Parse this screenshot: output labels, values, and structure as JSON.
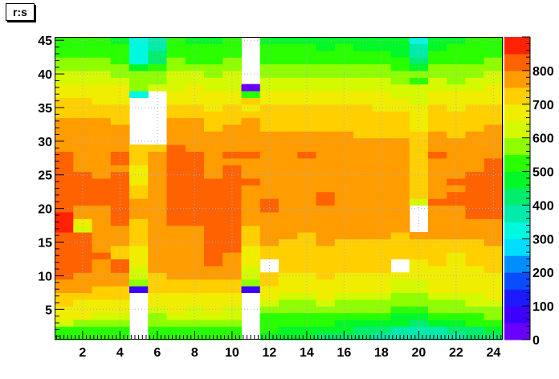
{
  "title": "r:s",
  "chart_data": {
    "type": "heatmap",
    "title": "r:s",
    "x_range": [
      0.5,
      24.5
    ],
    "y_range": [
      0.5,
      45.5
    ],
    "x_ticks": [
      2,
      4,
      6,
      8,
      10,
      12,
      14,
      16,
      18,
      20,
      22,
      24
    ],
    "y_ticks": [
      5,
      10,
      15,
      20,
      25,
      30,
      35,
      40,
      45
    ],
    "z_range": [
      0,
      900
    ],
    "colorbar_ticks": [
      0,
      100,
      200,
      300,
      400,
      500,
      600,
      700,
      800
    ],
    "grid": true,
    "empty_cells_note": "Cells with value null are not drawn (white).",
    "rows_y1_to_y45": [
      [
        510,
        510,
        510,
        520,
        null,
        520,
        510,
        510,
        510,
        520,
        null,
        480,
        470,
        460,
        440,
        420,
        410,
        390,
        360,
        350,
        360,
        380,
        400,
        420
      ],
      [
        540,
        530,
        520,
        520,
        null,
        540,
        530,
        530,
        520,
        540,
        null,
        500,
        490,
        480,
        470,
        450,
        440,
        410,
        370,
        350,
        380,
        400,
        430,
        450
      ],
      [
        600,
        590,
        590,
        580,
        null,
        570,
        590,
        580,
        570,
        590,
        null,
        520,
        510,
        500,
        500,
        490,
        480,
        470,
        450,
        440,
        470,
        480,
        510,
        520
      ],
      [
        660,
        650,
        640,
        630,
        null,
        590,
        640,
        600,
        620,
        630,
        null,
        540,
        530,
        520,
        540,
        520,
        520,
        510,
        490,
        490,
        520,
        510,
        540,
        550
      ],
      [
        680,
        680,
        670,
        660,
        null,
        620,
        650,
        640,
        650,
        640,
        null,
        570,
        560,
        560,
        580,
        560,
        560,
        550,
        530,
        530,
        560,
        550,
        580,
        590
      ],
      [
        700,
        690,
        690,
        690,
        null,
        650,
        660,
        660,
        650,
        660,
        null,
        610,
        590,
        590,
        620,
        590,
        590,
        590,
        560,
        560,
        590,
        590,
        610,
        620
      ],
      [
        730,
        720,
        710,
        720,
        null,
        680,
        680,
        690,
        680,
        690,
        null,
        650,
        620,
        620,
        650,
        620,
        630,
        620,
        590,
        590,
        620,
        620,
        640,
        650
      ],
      [
        760,
        750,
        730,
        740,
        80,
        700,
        710,
        720,
        710,
        720,
        80,
        680,
        650,
        650,
        670,
        650,
        650,
        650,
        620,
        620,
        650,
        650,
        660,
        670
      ],
      [
        790,
        770,
        750,
        760,
        560,
        720,
        730,
        740,
        740,
        740,
        560,
        700,
        670,
        670,
        690,
        670,
        670,
        670,
        640,
        640,
        670,
        660,
        670,
        680
      ],
      [
        810,
        790,
        770,
        790,
        620,
        740,
        760,
        760,
        780,
        760,
        620,
        720,
        690,
        690,
        700,
        690,
        690,
        690,
        650,
        660,
        680,
        670,
        680,
        690
      ],
      [
        820,
        800,
        790,
        800,
        640,
        750,
        770,
        770,
        790,
        770,
        640,
        null,
        700,
        700,
        710,
        700,
        700,
        700,
        null,
        670,
        690,
        680,
        690,
        700
      ],
      [
        820,
        800,
        790,
        810,
        650,
        760,
        780,
        770,
        800,
        780,
        650,
        null,
        710,
        710,
        700,
        710,
        720,
        700,
        null,
        690,
        700,
        690,
        700,
        710
      ],
      [
        830,
        810,
        800,
        720,
        660,
        770,
        780,
        780,
        810,
        790,
        670,
        720,
        700,
        700,
        720,
        710,
        700,
        710,
        700,
        700,
        700,
        690,
        700,
        720
      ],
      [
        830,
        810,
        760,
        740,
        680,
        770,
        790,
        790,
        820,
        800,
        690,
        740,
        720,
        720,
        730,
        730,
        730,
        730,
        720,
        720,
        720,
        710,
        720,
        730
      ],
      [
        820,
        810,
        750,
        760,
        700,
        760,
        790,
        790,
        830,
        800,
        710,
        760,
        740,
        730,
        750,
        740,
        740,
        740,
        730,
        730,
        740,
        730,
        740,
        750
      ],
      [
        830,
        820,
        760,
        760,
        720,
        750,
        790,
        790,
        820,
        800,
        730,
        770,
        750,
        740,
        760,
        750,
        750,
        760,
        740,
        750,
        750,
        750,
        750,
        760
      ],
      [
        850,
        630,
        770,
        790,
        740,
        760,
        790,
        790,
        810,
        800,
        740,
        780,
        760,
        760,
        770,
        770,
        770,
        770,
        760,
        null,
        770,
        770,
        770,
        780
      ],
      [
        860,
        650,
        780,
        800,
        740,
        770,
        800,
        800,
        820,
        800,
        760,
        790,
        770,
        770,
        780,
        780,
        780,
        780,
        770,
        null,
        780,
        780,
        780,
        790
      ],
      [
        850,
        770,
        780,
        810,
        760,
        780,
        810,
        810,
        830,
        810,
        770,
        790,
        780,
        780,
        790,
        790,
        790,
        790,
        780,
        null,
        790,
        790,
        800,
        810
      ],
      [
        840,
        790,
        790,
        820,
        780,
        780,
        820,
        820,
        840,
        820,
        780,
        800,
        790,
        780,
        790,
        790,
        790,
        790,
        780,
        null,
        790,
        790,
        810,
        820
      ],
      [
        830,
        800,
        800,
        820,
        780,
        790,
        820,
        820,
        830,
        820,
        790,
        800,
        790,
        790,
        800,
        790,
        790,
        790,
        790,
        600,
        800,
        800,
        810,
        820
      ],
      [
        840,
        810,
        800,
        810,
        700,
        790,
        830,
        820,
        820,
        830,
        790,
        790,
        780,
        790,
        800,
        790,
        790,
        790,
        790,
        700,
        790,
        800,
        810,
        820
      ],
      [
        830,
        810,
        800,
        820,
        700,
        780,
        830,
        820,
        810,
        820,
        790,
        790,
        790,
        790,
        790,
        790,
        780,
        790,
        790,
        720,
        780,
        790,
        810,
        820
      ],
      [
        820,
        800,
        800,
        810,
        690,
        780,
        820,
        810,
        800,
        810,
        800,
        790,
        780,
        790,
        790,
        780,
        790,
        790,
        780,
        710,
        790,
        800,
        810,
        820
      ],
      [
        820,
        800,
        790,
        800,
        690,
        770,
        820,
        810,
        790,
        810,
        790,
        790,
        780,
        780,
        780,
        780,
        760,
        780,
        780,
        720,
        780,
        790,
        800,
        810
      ],
      [
        810,
        790,
        780,
        790,
        690,
        760,
        810,
        810,
        790,
        800,
        780,
        780,
        770,
        780,
        790,
        780,
        780,
        780,
        770,
        720,
        770,
        780,
        790,
        800
      ],
      [
        810,
        790,
        780,
        800,
        700,
        760,
        810,
        800,
        790,
        790,
        780,
        780,
        780,
        790,
        780,
        780,
        790,
        780,
        780,
        720,
        780,
        780,
        790,
        800
      ],
      [
        800,
        790,
        780,
        820,
        700,
        750,
        810,
        820,
        780,
        800,
        820,
        780,
        770,
        800,
        790,
        780,
        780,
        770,
        770,
        720,
        800,
        780,
        780,
        790
      ],
      [
        790,
        780,
        780,
        780,
        720,
        740,
        800,
        790,
        780,
        790,
        780,
        770,
        770,
        770,
        780,
        770,
        760,
        760,
        760,
        720,
        770,
        760,
        770,
        780
      ],
      [
        780,
        780,
        780,
        770,
        null,
        null,
        780,
        780,
        760,
        770,
        760,
        760,
        760,
        760,
        760,
        760,
        750,
        750,
        750,
        710,
        760,
        750,
        760,
        770
      ],
      [
        770,
        770,
        770,
        760,
        null,
        null,
        770,
        770,
        750,
        760,
        760,
        750,
        750,
        750,
        750,
        750,
        740,
        740,
        740,
        700,
        750,
        740,
        780,
        760
      ],
      [
        760,
        760,
        760,
        750,
        null,
        null,
        760,
        760,
        740,
        750,
        750,
        740,
        740,
        740,
        740,
        740,
        740,
        730,
        730,
        690,
        740,
        730,
        740,
        750
      ],
      [
        750,
        750,
        750,
        740,
        null,
        null,
        750,
        770,
        740,
        740,
        780,
        730,
        730,
        730,
        730,
        730,
        730,
        720,
        720,
        680,
        730,
        720,
        730,
        740
      ],
      [
        740,
        740,
        740,
        730,
        null,
        null,
        740,
        740,
        730,
        730,
        720,
        720,
        720,
        720,
        720,
        720,
        720,
        710,
        710,
        670,
        720,
        710,
        720,
        730
      ],
      [
        720,
        720,
        710,
        700,
        null,
        null,
        710,
        710,
        690,
        710,
        680,
        700,
        700,
        700,
        700,
        700,
        700,
        690,
        690,
        650,
        700,
        690,
        700,
        710
      ],
      [
        700,
        700,
        690,
        690,
        null,
        null,
        690,
        690,
        670,
        690,
        700,
        680,
        680,
        680,
        680,
        680,
        680,
        670,
        670,
        640,
        680,
        670,
        680,
        690
      ],
      [
        680,
        680,
        670,
        670,
        300,
        null,
        670,
        670,
        650,
        660,
        520,
        660,
        660,
        660,
        660,
        660,
        650,
        650,
        640,
        620,
        650,
        650,
        660,
        670
      ],
      [
        660,
        660,
        650,
        650,
        550,
        600,
        640,
        650,
        630,
        640,
        40,
        640,
        640,
        640,
        640,
        630,
        630,
        630,
        620,
        600,
        630,
        620,
        640,
        650
      ],
      [
        640,
        640,
        630,
        620,
        580,
        580,
        630,
        620,
        600,
        630,
        null,
        620,
        620,
        610,
        610,
        610,
        600,
        600,
        590,
        500,
        600,
        590,
        610,
        620
      ],
      [
        610,
        610,
        600,
        590,
        550,
        560,
        600,
        600,
        580,
        600,
        null,
        590,
        590,
        580,
        580,
        590,
        580,
        570,
        570,
        550,
        570,
        570,
        590,
        600
      ],
      [
        590,
        590,
        580,
        560,
        450,
        500,
        580,
        570,
        550,
        580,
        null,
        570,
        570,
        560,
        560,
        570,
        560,
        550,
        540,
        450,
        550,
        550,
        570,
        580
      ],
      [
        560,
        560,
        550,
        540,
        320,
        440,
        550,
        540,
        520,
        550,
        null,
        540,
        530,
        530,
        520,
        530,
        520,
        520,
        500,
        400,
        510,
        520,
        540,
        550
      ],
      [
        540,
        540,
        530,
        510,
        300,
        400,
        530,
        520,
        510,
        540,
        null,
        520,
        510,
        510,
        500,
        510,
        500,
        500,
        470,
        380,
        500,
        510,
        520,
        530
      ],
      [
        520,
        520,
        520,
        500,
        300,
        390,
        510,
        510,
        500,
        520,
        null,
        510,
        500,
        500,
        490,
        500,
        490,
        490,
        470,
        360,
        480,
        500,
        510,
        520
      ],
      [
        500,
        500,
        500,
        490,
        310,
        380,
        500,
        490,
        490,
        500,
        null,
        490,
        480,
        480,
        470,
        480,
        470,
        480,
        460,
        330,
        470,
        480,
        500,
        510
      ]
    ]
  }
}
